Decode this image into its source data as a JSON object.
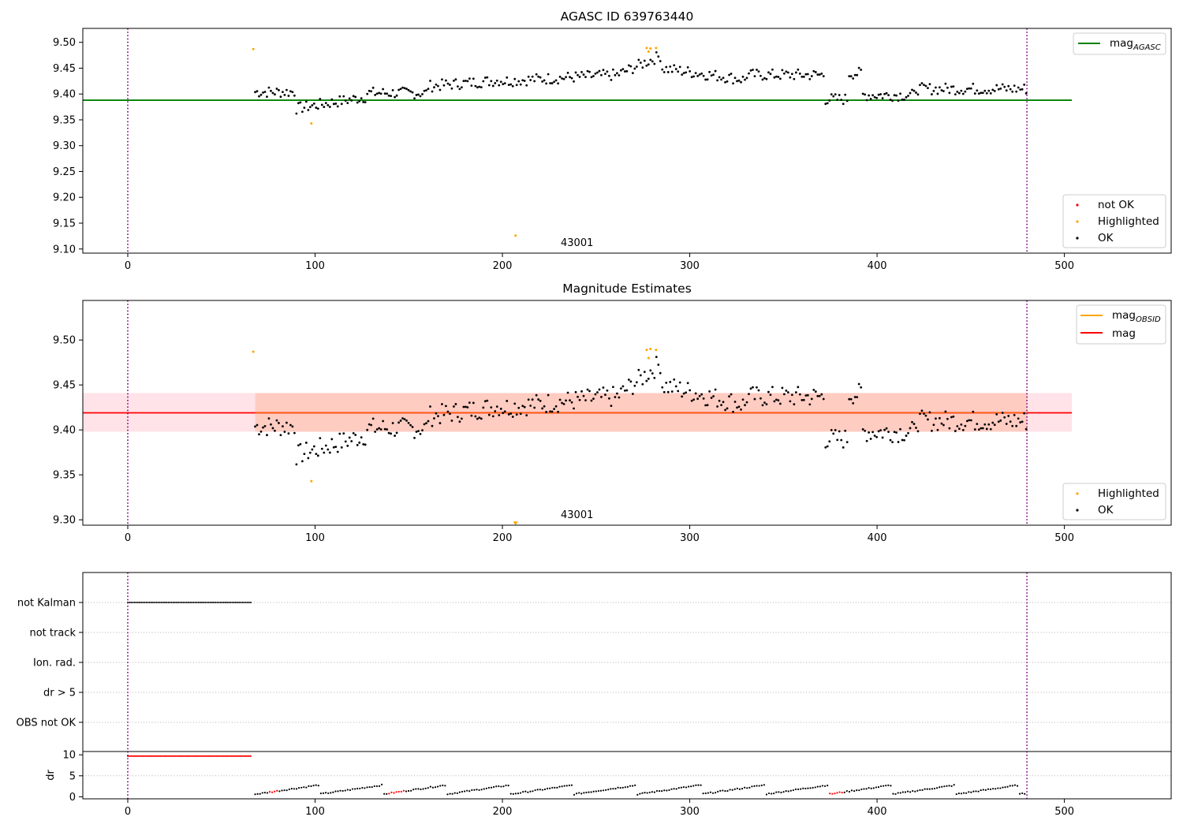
{
  "chart_data": [
    {
      "type": "scatter",
      "title": "AGASC ID 639763440",
      "xlim": [
        -24,
        557
      ],
      "ylim": [
        9.092,
        9.527
      ],
      "xticks": [
        0,
        100,
        200,
        300,
        400,
        500
      ],
      "yticks": [
        9.1,
        9.15,
        9.2,
        9.25,
        9.3,
        9.35,
        9.4,
        9.45,
        9.5
      ],
      "ytick_labels": [
        "9.10",
        "9.15",
        "9.20",
        "9.25",
        "9.30",
        "9.35",
        "9.40",
        "9.45",
        "9.50"
      ],
      "vlines": [
        0,
        480
      ],
      "hline": {
        "name": "mag_AGASC",
        "value": 9.388,
        "x": [
          -24,
          504
        ],
        "color": "#008000"
      },
      "annotation": {
        "text": "43001",
        "x": 240,
        "y": 9.101
      },
      "highlighted_points": [
        [
          67,
          9.487
        ],
        [
          98,
          9.343
        ],
        [
          207,
          9.126
        ],
        [
          277,
          9.489
        ],
        [
          279,
          9.488
        ],
        [
          278,
          9.482
        ],
        [
          282,
          9.489
        ]
      ],
      "legend_top": [
        {
          "label_main": "mag",
          "label_sub": "AGASC",
          "color": "#008000",
          "kind": "line"
        }
      ],
      "legend_bottom": [
        {
          "label": "not OK",
          "color": "#ff0000",
          "kind": "dot"
        },
        {
          "label": "Highlighted",
          "color": "#ffa500",
          "kind": "dot"
        },
        {
          "label": "OK",
          "color": "#000000",
          "kind": "dot"
        }
      ],
      "series_note": "OK points follow the magnitude curve between x=68 and x=480"
    },
    {
      "type": "scatter",
      "title": "Magnitude Estimates",
      "xlim": [
        -24,
        557
      ],
      "ylim": [
        9.294,
        9.544
      ],
      "xticks": [
        0,
        100,
        200,
        300,
        400,
        500
      ],
      "yticks": [
        9.3,
        9.35,
        9.4,
        9.45,
        9.5
      ],
      "ytick_labels": [
        "9.30",
        "9.35",
        "9.40",
        "9.45",
        "9.50"
      ],
      "vlines": [
        0,
        480
      ],
      "mag_line": {
        "name": "mag",
        "value": 9.419,
        "color": "#ff0000"
      },
      "obsid_line": {
        "name": "mag_OBSID",
        "value": 9.419,
        "color": "#ffa500"
      },
      "band_pink": {
        "lower": 9.398,
        "upper": 9.441,
        "x": [
          -24,
          504
        ]
      },
      "band_orange": {
        "lower": 9.398,
        "upper": 9.441,
        "x": [
          68,
          480
        ]
      },
      "annotation": {
        "text": "43001",
        "x": 240,
        "y": 9.302
      },
      "highlighted_points": [
        [
          67,
          9.487
        ],
        [
          98,
          9.343
        ],
        [
          207,
          9.297
        ],
        [
          277,
          9.489
        ],
        [
          279,
          9.49
        ],
        [
          278,
          9.48
        ],
        [
          282,
          9.489
        ]
      ],
      "legend_top": [
        {
          "label_main": "mag",
          "label_sub": "OBSID",
          "color": "#ffa500",
          "kind": "line"
        },
        {
          "label_main": "mag",
          "label_sub": "",
          "color": "#ff0000",
          "kind": "line"
        }
      ],
      "legend_bottom": [
        {
          "label": "Highlighted",
          "color": "#ffa500",
          "kind": "dot"
        },
        {
          "label": "OK",
          "color": "#000000",
          "kind": "dot"
        }
      ]
    },
    {
      "type": "scatter",
      "title": "",
      "xlim": [
        -24,
        557
      ],
      "xticks": [
        0,
        100,
        200,
        300,
        400,
        500
      ],
      "vlines": [
        0,
        480
      ],
      "flag_categories": [
        "not Kalman",
        "not track",
        "Ion. rad.",
        "dr > 5",
        "OBS not OK"
      ],
      "flag_points": [
        {
          "category": "not Kalman",
          "x_from": 0,
          "x_to": 66
        }
      ],
      "dr_axis": {
        "ylabel": "dr",
        "yticks": [
          0,
          5,
          10
        ],
        "ytick_labels": [
          "0",
          "5",
          "10"
        ],
        "ylim": [
          -0.3,
          10.6
        ]
      },
      "dr_red_segment": {
        "x_from": 0,
        "x_to": 66,
        "value": 9.7
      }
    }
  ]
}
